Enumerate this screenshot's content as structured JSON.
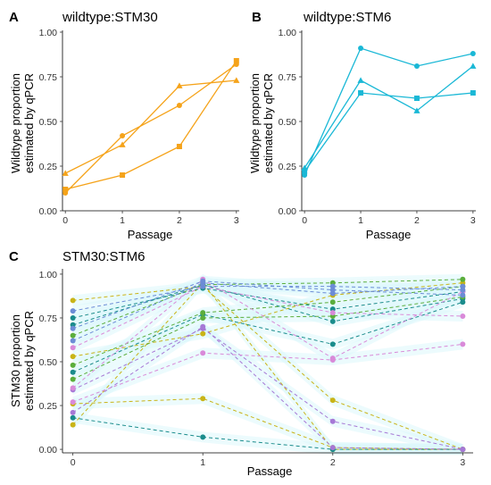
{
  "figure": {
    "panel_letters": [
      "A",
      "B",
      "C"
    ]
  },
  "chart_data": [
    {
      "panel": "A",
      "type": "line",
      "title": "wildtype:STM30",
      "xlabel": "Passage",
      "ylabel_lines": [
        "Wildtype proportion",
        "estimated by qPCR"
      ],
      "x_ticks": [
        0,
        1,
        2,
        3
      ],
      "y_ticks": [
        0.0,
        0.25,
        0.5,
        0.75,
        1.0
      ],
      "y_tick_labels": [
        "0.00",
        "0.25",
        "0.50",
        "0.75",
        "1.00"
      ],
      "xlim": [
        -0.05,
        3.05
      ],
      "ylim": [
        0,
        1.0
      ],
      "color": "#F5A31A",
      "line_style": "solid",
      "series": [
        {
          "marker": "circle",
          "x": [
            0,
            1,
            2,
            3
          ],
          "y": [
            0.1,
            0.42,
            0.59,
            0.82
          ]
        },
        {
          "marker": "triangle",
          "x": [
            0,
            1,
            2,
            3
          ],
          "y": [
            0.21,
            0.37,
            0.7,
            0.73
          ]
        },
        {
          "marker": "square",
          "x": [
            0,
            1,
            2,
            3
          ],
          "y": [
            0.12,
            0.2,
            0.36,
            0.84
          ]
        }
      ]
    },
    {
      "panel": "B",
      "type": "line",
      "title": "wildtype:STM6",
      "xlabel": "Passage",
      "ylabel_lines": [
        "Wildtype proportion",
        "estimated by qPCR"
      ],
      "x_ticks": [
        0,
        1,
        2,
        3
      ],
      "y_ticks": [
        0.0,
        0.25,
        0.5,
        0.75,
        1.0
      ],
      "y_tick_labels": [
        "0.00",
        "0.25",
        "0.50",
        "0.75",
        "1.00"
      ],
      "xlim": [
        -0.05,
        3.05
      ],
      "ylim": [
        0,
        1.0
      ],
      "color": "#1AB8D6",
      "line_style": "solid",
      "series": [
        {
          "marker": "circle",
          "x": [
            0,
            1,
            2,
            3
          ],
          "y": [
            0.2,
            0.91,
            0.81,
            0.88
          ]
        },
        {
          "marker": "triangle",
          "x": [
            0,
            1,
            2,
            3
          ],
          "y": [
            0.24,
            0.73,
            0.56,
            0.81
          ]
        },
        {
          "marker": "square",
          "x": [
            0,
            1,
            2,
            3
          ],
          "y": [
            0.22,
            0.66,
            0.63,
            0.66
          ]
        }
      ]
    },
    {
      "panel": "C",
      "type": "line",
      "title": "STM30:STM6",
      "xlabel": "Passage",
      "ylabel_lines": [
        "STM30 proportion",
        "estimated by qPCR"
      ],
      "x_ticks": [
        0,
        1,
        2,
        3
      ],
      "y_ticks": [
        0.0,
        0.25,
        0.5,
        0.75,
        1.0
      ],
      "y_tick_labels": [
        "0.00",
        "0.25",
        "0.50",
        "0.75",
        "1.00"
      ],
      "xlim": [
        -0.08,
        3.08
      ],
      "ylim": [
        -0.02,
        1.02
      ],
      "line_style": "dashed",
      "ribbon_color": "#DDF7FB",
      "series": [
        {
          "color": "#C9B417",
          "x": [
            0,
            1,
            2,
            3
          ],
          "y": [
            0.85,
            0.93,
            0.28,
            0.0
          ]
        },
        {
          "color": "#C9B417",
          "x": [
            0,
            1,
            2,
            3
          ],
          "y": [
            0.26,
            0.29,
            0.01,
            0.0
          ]
        },
        {
          "color": "#C9B417",
          "x": [
            0,
            1,
            2,
            3
          ],
          "y": [
            0.14,
            0.95,
            0.0,
            0.0
          ]
        },
        {
          "color": "#C9B417",
          "x": [
            0,
            1,
            2,
            3
          ],
          "y": [
            0.53,
            0.66,
            0.88,
            0.95
          ]
        },
        {
          "color": "#1A8C8C",
          "x": [
            0,
            1,
            2,
            3
          ],
          "y": [
            0.18,
            0.07,
            0.0,
            0.0
          ]
        },
        {
          "color": "#1A8C8C",
          "x": [
            0,
            1,
            2,
            3
          ],
          "y": [
            0.44,
            0.77,
            0.6,
            0.84
          ]
        },
        {
          "color": "#1A8C8C",
          "x": [
            0,
            1,
            2,
            3
          ],
          "y": [
            0.71,
            0.94,
            0.73,
            0.86
          ]
        },
        {
          "color": "#1A8C8C",
          "x": [
            0,
            1,
            2,
            3
          ],
          "y": [
            0.75,
            0.92,
            0.8,
            0.9
          ]
        },
        {
          "color": "#5BAE3C",
          "x": [
            0,
            1,
            2,
            3
          ],
          "y": [
            0.65,
            0.94,
            0.95,
            0.97
          ]
        },
        {
          "color": "#5BAE3C",
          "x": [
            0,
            1,
            2,
            3
          ],
          "y": [
            0.48,
            0.78,
            0.84,
            0.93
          ]
        },
        {
          "color": "#5BAE3C",
          "x": [
            0,
            1,
            2,
            3
          ],
          "y": [
            0.4,
            0.75,
            0.76,
            0.87
          ]
        },
        {
          "color": "#A678D6",
          "x": [
            0,
            1,
            2,
            3
          ],
          "y": [
            0.21,
            0.7,
            0.01,
            0.0
          ]
        },
        {
          "color": "#A678D6",
          "x": [
            0,
            1,
            2,
            3
          ],
          "y": [
            0.34,
            0.69,
            0.16,
            0.0
          ]
        },
        {
          "color": "#D98AD9",
          "x": [
            0,
            1,
            2,
            3
          ],
          "y": [
            0.27,
            0.55,
            0.51,
            0.6
          ]
        },
        {
          "color": "#D98AD9",
          "x": [
            0,
            1,
            2,
            3
          ],
          "y": [
            0.58,
            0.93,
            0.78,
            0.76
          ]
        },
        {
          "color": "#D98AD9",
          "x": [
            0,
            1,
            2,
            3
          ],
          "y": [
            0.35,
            0.97,
            0.52,
            0.9
          ]
        },
        {
          "color": "#6C8CD6",
          "x": [
            0,
            1,
            2,
            3
          ],
          "y": [
            0.62,
            0.95,
            0.89,
            0.93
          ]
        },
        {
          "color": "#6C8CD6",
          "x": [
            0,
            1,
            2,
            3
          ],
          "y": [
            0.79,
            0.93,
            0.93,
            0.91
          ]
        },
        {
          "color": "#6C8CD6",
          "x": [
            0,
            1,
            2,
            3
          ],
          "y": [
            0.69,
            0.96,
            0.91,
            0.88
          ]
        }
      ]
    }
  ]
}
